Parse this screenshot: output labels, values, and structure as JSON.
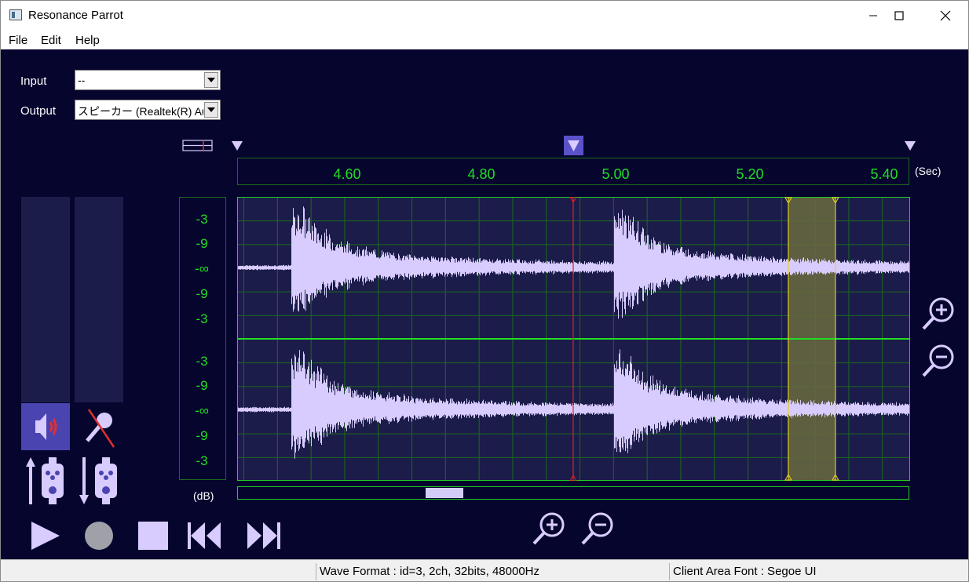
{
  "window": {
    "title": "Resonance Parrot"
  },
  "menu": {
    "items": [
      "File",
      "Edit",
      "Help"
    ]
  },
  "controls": {
    "input_label": "Input",
    "input_value": "--",
    "output_label": "Output",
    "output_value": "スピーカー (Realtek(R) Au"
  },
  "timeline": {
    "ticks": [
      "4.60",
      "4.80",
      "5.00",
      "5.20",
      "5.40"
    ],
    "unit": "(Sec)",
    "tick_color": "#22dd22"
  },
  "amplitude": {
    "channel1_labels": [
      "-3",
      "-9",
      "-∞",
      "-9",
      "-3"
    ],
    "channel2_labels": [
      "-3",
      "-9",
      "-∞",
      "-9",
      "-3"
    ],
    "unit": "(dB)"
  },
  "waveform": {
    "channels": 2,
    "cursor_time_sec": 4.94,
    "selection_start_sec": 5.26,
    "selection_end_sec": 5.33,
    "view_start_sec": 4.44,
    "view_end_sec": 5.44,
    "onsets_sec": [
      4.52,
      5.0
    ],
    "colors": {
      "wave": "#d8ccff",
      "grid": "#1a6a1a",
      "cursor": "#e02020",
      "selection": "#e0d020",
      "background": "#1c1c4a"
    }
  },
  "icons": {
    "speaker": "speaker-icon",
    "microphone_muted": "microphone-muted-icon",
    "play": "play-icon",
    "record": "record-icon",
    "stop": "stop-icon",
    "skip_back": "skip-back-icon",
    "skip_forward": "skip-forward-icon",
    "zoom_in": "zoom-in-icon",
    "zoom_out": "zoom-out-icon"
  },
  "status": {
    "wave_format": "Wave Format : id=3, 2ch, 32bits, 48000Hz",
    "font": "Client Area Font : Segoe UI"
  }
}
